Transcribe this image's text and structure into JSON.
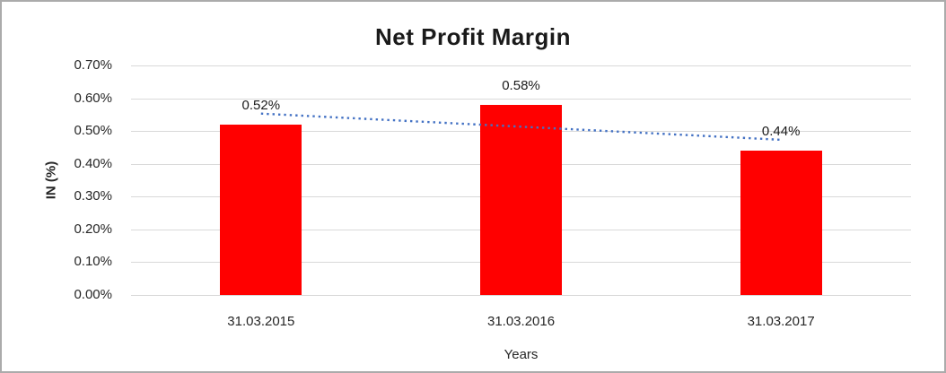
{
  "chart_data": {
    "type": "bar",
    "title": "Net Profit Margin",
    "xlabel": "Years",
    "ylabel": "IN (%)",
    "categories": [
      "31.03.2015",
      "31.03.2016",
      "31.03.2017"
    ],
    "values": [
      0.52,
      0.58,
      0.44
    ],
    "data_labels": [
      "0.52%",
      "0.58%",
      "0.44%"
    ],
    "bar_color": "#ff0000",
    "ylim": [
      0,
      0.7
    ],
    "yticks": [
      {
        "value": 0.7,
        "label": "0.70%"
      },
      {
        "value": 0.6,
        "label": "0.60%"
      },
      {
        "value": 0.5,
        "label": "0.50%"
      },
      {
        "value": 0.4,
        "label": "0.40%"
      },
      {
        "value": 0.3,
        "label": "0.30%"
      },
      {
        "value": 0.2,
        "label": "0.20%"
      },
      {
        "value": 0.1,
        "label": "0.10%"
      },
      {
        "value": 0.0,
        "label": "0.00%"
      }
    ],
    "grid": true,
    "gridline_color": "#d9d9d9",
    "legend": "none",
    "trendline": {
      "type": "linear",
      "style": "dotted",
      "color": "#4472c4",
      "fitted_values": [
        0.5533,
        0.5133,
        0.4733
      ]
    }
  }
}
